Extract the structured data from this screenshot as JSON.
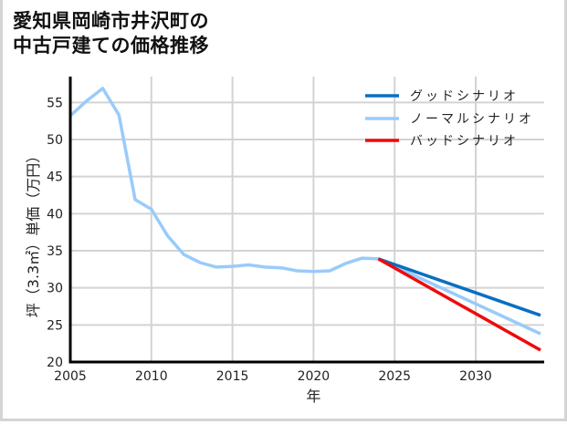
{
  "title_line1": "愛知県岡崎市井沢町の",
  "title_line2": "中古戸建ての価格推移",
  "chart_data": {
    "type": "line",
    "title": "愛知県岡崎市井沢町の中古戸建ての価格推移",
    "xlabel": "年",
    "ylabel": "坪（3.3㎡）単価（万円）",
    "xlim": [
      2005,
      2034
    ],
    "ylim": [
      20,
      58
    ],
    "xticks": [
      2005,
      2010,
      2015,
      2020,
      2025,
      2030
    ],
    "yticks": [
      20,
      25,
      30,
      35,
      40,
      45,
      50,
      55
    ],
    "grid": true,
    "legend_position": "upper right",
    "series": [
      {
        "name": "グッドシナリオ",
        "color": "#0a6fc2",
        "x": [
          2024,
          2034
        ],
        "values": [
          33.9,
          26.3
        ]
      },
      {
        "name": "ノーマルシナリオ",
        "color": "#99cbfa",
        "x": [
          2005,
          2006,
          2007,
          2008,
          2009,
          2010,
          2011,
          2012,
          2013,
          2014,
          2015,
          2016,
          2017,
          2018,
          2019,
          2020,
          2021,
          2022,
          2023,
          2024,
          2034
        ],
        "values": [
          53.2,
          55.2,
          56.9,
          53.3,
          41.9,
          40.6,
          37.0,
          34.5,
          33.4,
          32.8,
          32.9,
          33.1,
          32.8,
          32.7,
          32.3,
          32.2,
          32.3,
          33.3,
          34.0,
          33.9,
          23.8
        ]
      },
      {
        "name": "バッドシナリオ",
        "color": "#f00a0a",
        "x": [
          2024,
          2034
        ],
        "values": [
          33.9,
          21.6
        ]
      }
    ]
  }
}
